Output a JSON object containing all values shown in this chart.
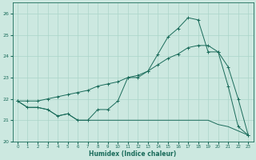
{
  "xlabel": "Humidex (Indice chaleur)",
  "background_color": "#cce8e0",
  "grid_color": "#aad4c8",
  "line_color": "#1a6b5a",
  "xlim": [
    -0.5,
    23.5
  ],
  "ylim": [
    20.0,
    26.5
  ],
  "yticks": [
    20,
    21,
    22,
    23,
    24,
    25,
    26
  ],
  "xticks": [
    0,
    1,
    2,
    3,
    4,
    5,
    6,
    7,
    8,
    9,
    10,
    11,
    12,
    13,
    14,
    15,
    16,
    17,
    18,
    19,
    20,
    21,
    22,
    23
  ],
  "main_x": [
    0,
    1,
    2,
    3,
    4,
    5,
    6,
    7,
    8,
    9,
    10,
    11,
    12,
    13,
    14,
    15,
    16,
    17,
    18,
    19,
    20,
    21,
    22,
    23
  ],
  "main_y": [
    21.9,
    21.6,
    21.6,
    21.5,
    21.2,
    21.3,
    21.0,
    21.0,
    21.5,
    21.5,
    21.9,
    23.0,
    23.0,
    23.3,
    24.1,
    24.9,
    25.3,
    25.8,
    25.7,
    24.2,
    24.2,
    22.6,
    20.7,
    20.3
  ],
  "upper_x": [
    0,
    1,
    2,
    3,
    4,
    5,
    6,
    7,
    8,
    9,
    10,
    11,
    12,
    13,
    14,
    15,
    16,
    17,
    18,
    19,
    20,
    21,
    22,
    23
  ],
  "upper_y": [
    21.9,
    21.9,
    21.9,
    22.0,
    22.1,
    22.2,
    22.3,
    22.4,
    22.6,
    22.7,
    22.8,
    23.0,
    23.1,
    23.3,
    23.6,
    23.9,
    24.1,
    24.4,
    24.5,
    24.5,
    24.2,
    23.5,
    22.0,
    20.3
  ],
  "lower_x": [
    0,
    1,
    2,
    3,
    4,
    5,
    6,
    7,
    8,
    9,
    10,
    11,
    12,
    13,
    14,
    15,
    16,
    17,
    18,
    19,
    20,
    21,
    22,
    23
  ],
  "lower_y": [
    21.9,
    21.6,
    21.6,
    21.5,
    21.2,
    21.3,
    21.0,
    21.0,
    21.0,
    21.0,
    21.0,
    21.0,
    21.0,
    21.0,
    21.0,
    21.0,
    21.0,
    21.0,
    21.0,
    21.0,
    20.8,
    20.7,
    20.5,
    20.3
  ]
}
